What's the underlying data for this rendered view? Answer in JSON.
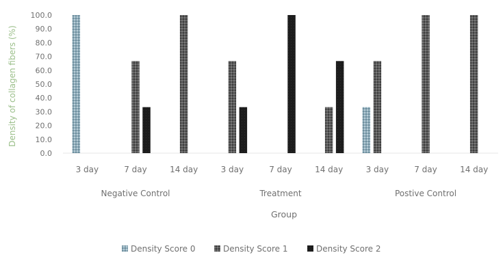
{
  "chart_data": {
    "type": "bar",
    "ylabel": "Density of collagen fibers (%)",
    "xlabel": "Group",
    "ylim": [
      0,
      100
    ],
    "yticks": [
      "0.0",
      "10.0",
      "20.0",
      "30.0",
      "40.0",
      "50.0",
      "60.0",
      "70.0",
      "80.0",
      "90.0",
      "100.0"
    ],
    "groups": [
      "Negative Control",
      "Treatment",
      "Postive Control"
    ],
    "categories": [
      "3 day",
      "7 day",
      "14 day",
      "3 day",
      "7 day",
      "14 day",
      "3 day",
      "7 day",
      "14 day"
    ],
    "series": [
      {
        "name": "Density Score 0",
        "color": "#8aa9b8",
        "values": [
          100,
          0,
          0,
          0,
          0,
          0,
          33.3,
          0,
          0
        ]
      },
      {
        "name": "Density Score 1",
        "color": "#4a4a4a",
        "values": [
          0,
          66.7,
          100,
          66.7,
          0,
          33.3,
          66.7,
          100,
          100
        ]
      },
      {
        "name": "Density Score 2",
        "color": "#1c1c1c",
        "values": [
          0,
          33.3,
          0,
          33.3,
          100,
          66.7,
          0,
          0,
          0
        ]
      }
    ],
    "grid": false,
    "legend_position": "bottom"
  }
}
